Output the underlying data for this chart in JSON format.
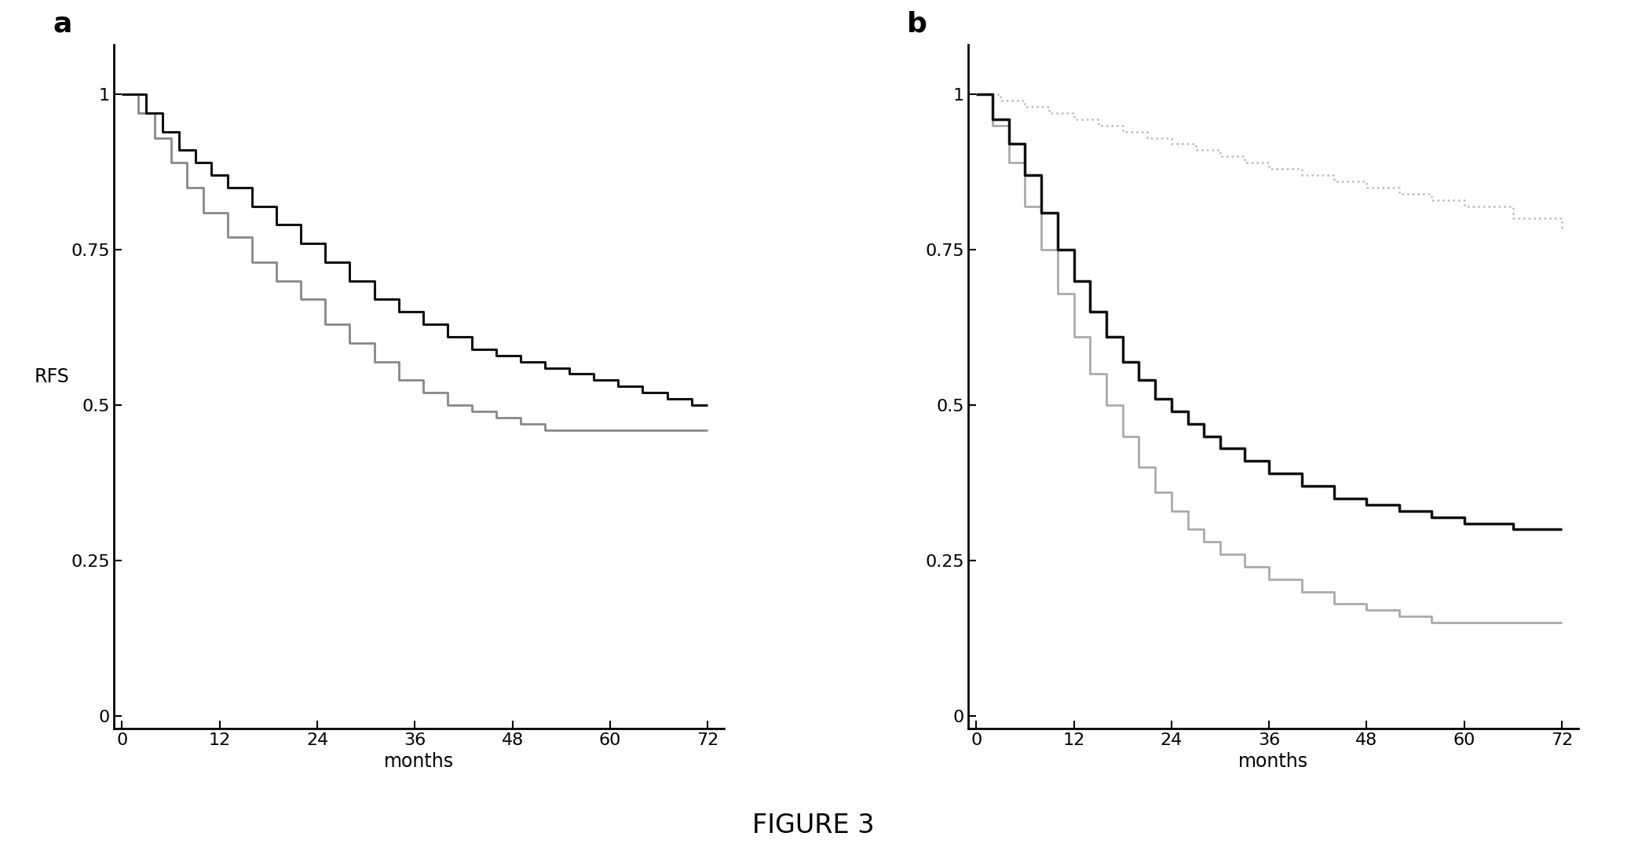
{
  "title": "FIGURE 3",
  "ylabel": "RFS",
  "xlabel": "months",
  "xticks": [
    0,
    12,
    24,
    36,
    48,
    60,
    72
  ],
  "ytick_vals": [
    0,
    0.25,
    0.5,
    0.75,
    1
  ],
  "ytick_labels": [
    "0",
    "0.25",
    "0.5",
    "0.75",
    "1"
  ],
  "panel_a_label": "a",
  "panel_b_label": "b",
  "panel_a": {
    "curve1": {
      "times": [
        0,
        3,
        5,
        7,
        9,
        11,
        13,
        16,
        19,
        22,
        25,
        28,
        31,
        34,
        37,
        40,
        43,
        46,
        49,
        52,
        55,
        58,
        61,
        64,
        67,
        70,
        72
      ],
      "surv": [
        1.0,
        0.97,
        0.94,
        0.91,
        0.89,
        0.87,
        0.85,
        0.82,
        0.79,
        0.76,
        0.73,
        0.7,
        0.67,
        0.65,
        0.63,
        0.61,
        0.59,
        0.58,
        0.57,
        0.56,
        0.55,
        0.54,
        0.53,
        0.52,
        0.51,
        0.5,
        0.5
      ],
      "color": "#111111",
      "lw": 2.2,
      "linestyle": "-",
      "zorder": 3
    },
    "curve2": {
      "times": [
        0,
        2,
        4,
        6,
        8,
        10,
        13,
        16,
        19,
        22,
        25,
        28,
        31,
        34,
        37,
        40,
        43,
        46,
        49,
        52,
        55,
        58,
        61,
        64,
        67,
        70,
        72
      ],
      "surv": [
        1.0,
        0.97,
        0.93,
        0.89,
        0.85,
        0.81,
        0.77,
        0.73,
        0.7,
        0.67,
        0.63,
        0.6,
        0.57,
        0.54,
        0.52,
        0.5,
        0.49,
        0.48,
        0.47,
        0.46,
        0.46,
        0.46,
        0.46,
        0.46,
        0.46,
        0.46,
        0.46
      ],
      "color": "#888888",
      "lw": 2.0,
      "linestyle": "-",
      "zorder": 2
    }
  },
  "panel_b": {
    "curve1_dotted": {
      "times": [
        0,
        3,
        6,
        9,
        12,
        15,
        18,
        21,
        24,
        27,
        30,
        33,
        36,
        40,
        44,
        48,
        52,
        56,
        60,
        66,
        72
      ],
      "surv": [
        1.0,
        0.99,
        0.98,
        0.97,
        0.96,
        0.95,
        0.94,
        0.93,
        0.92,
        0.91,
        0.9,
        0.89,
        0.88,
        0.87,
        0.86,
        0.85,
        0.84,
        0.83,
        0.82,
        0.8,
        0.78
      ],
      "color": "#bbbbbb",
      "lw": 1.8,
      "linestyle": ":",
      "zorder": 2
    },
    "curve2_dark": {
      "times": [
        0,
        2,
        4,
        6,
        8,
        10,
        12,
        14,
        16,
        18,
        20,
        22,
        24,
        26,
        28,
        30,
        33,
        36,
        40,
        44,
        48,
        52,
        56,
        60,
        66,
        72
      ],
      "surv": [
        1.0,
        0.96,
        0.92,
        0.87,
        0.81,
        0.75,
        0.7,
        0.65,
        0.61,
        0.57,
        0.54,
        0.51,
        0.49,
        0.47,
        0.45,
        0.43,
        0.41,
        0.39,
        0.37,
        0.35,
        0.34,
        0.33,
        0.32,
        0.31,
        0.3,
        0.3
      ],
      "color": "#111111",
      "lw": 2.5,
      "linestyle": "-",
      "zorder": 3
    },
    "curve3_gray": {
      "times": [
        0,
        2,
        4,
        6,
        8,
        10,
        12,
        14,
        16,
        18,
        20,
        22,
        24,
        26,
        28,
        30,
        33,
        36,
        40,
        44,
        48,
        52,
        56,
        60,
        66,
        72
      ],
      "surv": [
        1.0,
        0.95,
        0.89,
        0.82,
        0.75,
        0.68,
        0.61,
        0.55,
        0.5,
        0.45,
        0.4,
        0.36,
        0.33,
        0.3,
        0.28,
        0.26,
        0.24,
        0.22,
        0.2,
        0.18,
        0.17,
        0.16,
        0.15,
        0.15,
        0.15,
        0.15
      ],
      "color": "#aaaaaa",
      "lw": 2.0,
      "linestyle": "-",
      "zorder": 2
    }
  },
  "bg_color": "#ffffff",
  "title_fontsize": 24,
  "label_fontsize": 17,
  "tick_fontsize": 16,
  "panel_label_fontsize": 26
}
